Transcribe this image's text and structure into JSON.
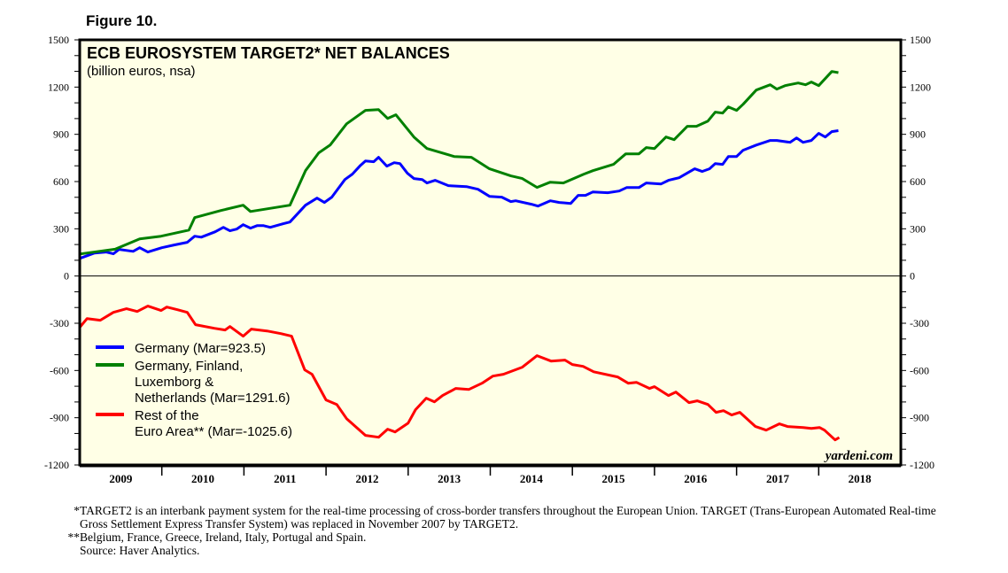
{
  "figure_label": "Figure 10.",
  "watermark": "yardeni.com",
  "footnotes": [
    {
      "mark": "*",
      "text": "TARGET2 is an interbank payment system for the real-time processing of cross-border transfers throughout the European Union. TARGET (Trans-European Automated Real-time Gross Settlement Express Transfer System) was replaced in November 2007 by TARGET2."
    },
    {
      "mark": "**",
      "text": "Belgium, France, Greece, Ireland, Italy, Portugal and Spain."
    },
    {
      "mark": "",
      "text": "Source: Haver Analytics."
    }
  ],
  "chart_data": {
    "type": "line",
    "title": "ECB EUROSYSTEM TARGET2* NET BALANCES",
    "subtitle": "(billion euros, nsa)",
    "xlabel": "",
    "ylabel": "",
    "xlim": [
      2009,
      2019
    ],
    "ylim": [
      -1200,
      1500
    ],
    "yticks": [
      1500,
      1200,
      900,
      600,
      300,
      0,
      -300,
      -600,
      -900,
      -1200
    ],
    "xtick_labels": [
      "2009",
      "2010",
      "2011",
      "2012",
      "2013",
      "2014",
      "2015",
      "2016",
      "2017",
      "2018"
    ],
    "legend_position": "left-middle",
    "series": [
      {
        "name": "Germany (Mar=923.5)",
        "color": "#0000ff",
        "points": [
          [
            2009.0,
            112
          ],
          [
            2009.18,
            146
          ],
          [
            2009.32,
            152
          ],
          [
            2009.41,
            141
          ],
          [
            2009.48,
            169
          ],
          [
            2009.65,
            157
          ],
          [
            2009.73,
            180
          ],
          [
            2009.83,
            152
          ],
          [
            2010.0,
            180
          ],
          [
            2010.15,
            197
          ],
          [
            2010.31,
            214
          ],
          [
            2010.4,
            253
          ],
          [
            2010.48,
            247
          ],
          [
            2010.65,
            281
          ],
          [
            2010.75,
            309
          ],
          [
            2010.83,
            287
          ],
          [
            2010.91,
            298
          ],
          [
            2010.99,
            326
          ],
          [
            2011.08,
            304
          ],
          [
            2011.16,
            320
          ],
          [
            2011.24,
            320
          ],
          [
            2011.32,
            309
          ],
          [
            2011.48,
            332
          ],
          [
            2011.56,
            343
          ],
          [
            2011.75,
            450
          ],
          [
            2011.89,
            495
          ],
          [
            2011.98,
            467
          ],
          [
            2012.07,
            501
          ],
          [
            2012.23,
            613
          ],
          [
            2012.32,
            647
          ],
          [
            2012.42,
            703
          ],
          [
            2012.48,
            731
          ],
          [
            2012.58,
            726
          ],
          [
            2012.64,
            754
          ],
          [
            2012.74,
            698
          ],
          [
            2012.83,
            720
          ],
          [
            2012.9,
            714
          ],
          [
            2012.99,
            653
          ],
          [
            2013.07,
            619
          ],
          [
            2013.17,
            613
          ],
          [
            2013.23,
            591
          ],
          [
            2013.33,
            608
          ],
          [
            2013.49,
            574
          ],
          [
            2013.71,
            568
          ],
          [
            2013.85,
            551
          ],
          [
            2013.99,
            506
          ],
          [
            2014.14,
            501
          ],
          [
            2014.25,
            473
          ],
          [
            2014.31,
            478
          ],
          [
            2014.5,
            456
          ],
          [
            2014.58,
            444
          ],
          [
            2014.73,
            478
          ],
          [
            2014.84,
            467
          ],
          [
            2014.98,
            461
          ],
          [
            2015.07,
            512
          ],
          [
            2015.16,
            512
          ],
          [
            2015.25,
            534
          ],
          [
            2015.43,
            529
          ],
          [
            2015.57,
            540
          ],
          [
            2015.66,
            562
          ],
          [
            2015.81,
            562
          ],
          [
            2015.9,
            591
          ],
          [
            2016.08,
            585
          ],
          [
            2016.17,
            608
          ],
          [
            2016.3,
            624
          ],
          [
            2016.49,
            681
          ],
          [
            2016.58,
            664
          ],
          [
            2016.67,
            681
          ],
          [
            2016.74,
            714
          ],
          [
            2016.83,
            709
          ],
          [
            2016.9,
            759
          ],
          [
            2017.0,
            759
          ],
          [
            2017.08,
            799
          ],
          [
            2017.24,
            832
          ],
          [
            2017.41,
            861
          ],
          [
            2017.49,
            861
          ],
          [
            2017.65,
            849
          ],
          [
            2017.73,
            877
          ],
          [
            2017.81,
            849
          ],
          [
            2017.91,
            861
          ],
          [
            2018.0,
            906
          ],
          [
            2018.08,
            883
          ],
          [
            2018.16,
            917
          ],
          [
            2018.24,
            923.5
          ]
        ]
      },
      {
        "name": "Germany, Finland, Luxemborg & Netherlands (Mar=1291.6)",
        "color": "#008000",
        "points": [
          [
            2009.0,
            140
          ],
          [
            2009.43,
            170
          ],
          [
            2009.73,
            236
          ],
          [
            2009.99,
            253
          ],
          [
            2010.33,
            292
          ],
          [
            2010.4,
            371
          ],
          [
            2010.72,
            416
          ],
          [
            2010.99,
            450
          ],
          [
            2011.08,
            410
          ],
          [
            2011.56,
            450
          ],
          [
            2011.75,
            669
          ],
          [
            2011.91,
            782
          ],
          [
            2012.05,
            832
          ],
          [
            2012.25,
            967
          ],
          [
            2012.48,
            1052
          ],
          [
            2012.64,
            1057
          ],
          [
            2012.75,
            1001
          ],
          [
            2012.85,
            1024
          ],
          [
            2013.07,
            883
          ],
          [
            2013.23,
            810
          ],
          [
            2013.56,
            759
          ],
          [
            2013.77,
            754
          ],
          [
            2013.99,
            681
          ],
          [
            2014.25,
            636
          ],
          [
            2014.39,
            619
          ],
          [
            2014.57,
            563
          ],
          [
            2014.73,
            596
          ],
          [
            2014.89,
            591
          ],
          [
            2015.14,
            647
          ],
          [
            2015.25,
            669
          ],
          [
            2015.5,
            709
          ],
          [
            2015.65,
            776
          ],
          [
            2015.81,
            776
          ],
          [
            2015.9,
            816
          ],
          [
            2016.0,
            810
          ],
          [
            2016.14,
            883
          ],
          [
            2016.24,
            866
          ],
          [
            2016.4,
            951
          ],
          [
            2016.51,
            951
          ],
          [
            2016.65,
            984
          ],
          [
            2016.74,
            1041
          ],
          [
            2016.83,
            1035
          ],
          [
            2016.9,
            1074
          ],
          [
            2017.0,
            1052
          ],
          [
            2017.08,
            1091
          ],
          [
            2017.24,
            1181
          ],
          [
            2017.41,
            1215
          ],
          [
            2017.49,
            1187
          ],
          [
            2017.59,
            1209
          ],
          [
            2017.75,
            1226
          ],
          [
            2017.84,
            1215
          ],
          [
            2017.91,
            1232
          ],
          [
            2018.0,
            1209
          ],
          [
            2018.16,
            1299
          ],
          [
            2018.24,
            1291.6
          ]
        ]
      },
      {
        "name": "Rest of the Euro Area** (Mar=-1025.6)",
        "color": "#ff0000",
        "points": [
          [
            2009.0,
            -326
          ],
          [
            2009.09,
            -270
          ],
          [
            2009.25,
            -281
          ],
          [
            2009.41,
            -231
          ],
          [
            2009.57,
            -208
          ],
          [
            2009.7,
            -225
          ],
          [
            2009.83,
            -191
          ],
          [
            2009.99,
            -219
          ],
          [
            2010.06,
            -197
          ],
          [
            2010.19,
            -214
          ],
          [
            2010.31,
            -231
          ],
          [
            2010.41,
            -309
          ],
          [
            2010.64,
            -332
          ],
          [
            2010.77,
            -343
          ],
          [
            2010.83,
            -321
          ],
          [
            2010.99,
            -382
          ],
          [
            2011.09,
            -337
          ],
          [
            2011.28,
            -349
          ],
          [
            2011.45,
            -366
          ],
          [
            2011.58,
            -382
          ],
          [
            2011.74,
            -596
          ],
          [
            2011.83,
            -624
          ],
          [
            2012.0,
            -787
          ],
          [
            2012.13,
            -816
          ],
          [
            2012.25,
            -906
          ],
          [
            2012.48,
            -1012
          ],
          [
            2012.64,
            -1024
          ],
          [
            2012.75,
            -973
          ],
          [
            2012.84,
            -990
          ],
          [
            2013.0,
            -934
          ],
          [
            2013.09,
            -849
          ],
          [
            2013.22,
            -776
          ],
          [
            2013.32,
            -799
          ],
          [
            2013.42,
            -759
          ],
          [
            2013.58,
            -714
          ],
          [
            2013.74,
            -720
          ],
          [
            2013.9,
            -681
          ],
          [
            2014.03,
            -636
          ],
          [
            2014.16,
            -624
          ],
          [
            2014.39,
            -579
          ],
          [
            2014.57,
            -506
          ],
          [
            2014.74,
            -540
          ],
          [
            2014.91,
            -534
          ],
          [
            2015.0,
            -562
          ],
          [
            2015.13,
            -574
          ],
          [
            2015.26,
            -608
          ],
          [
            2015.55,
            -641
          ],
          [
            2015.68,
            -681
          ],
          [
            2015.78,
            -675
          ],
          [
            2015.94,
            -714
          ],
          [
            2016.0,
            -703
          ],
          [
            2016.17,
            -759
          ],
          [
            2016.26,
            -737
          ],
          [
            2016.42,
            -804
          ],
          [
            2016.52,
            -793
          ],
          [
            2016.65,
            -816
          ],
          [
            2016.75,
            -866
          ],
          [
            2016.84,
            -855
          ],
          [
            2016.94,
            -883
          ],
          [
            2017.04,
            -866
          ],
          [
            2017.23,
            -956
          ],
          [
            2017.36,
            -979
          ],
          [
            2017.52,
            -939
          ],
          [
            2017.62,
            -956
          ],
          [
            2017.81,
            -962
          ],
          [
            2017.91,
            -968
          ],
          [
            2018.01,
            -962
          ],
          [
            2018.07,
            -979
          ],
          [
            2018.2,
            -1041
          ],
          [
            2018.25,
            -1025.6
          ]
        ]
      }
    ],
    "legend_lines": [
      {
        "series": 0,
        "lines": [
          "Germany (Mar=923.5)"
        ]
      },
      {
        "series": 1,
        "lines": [
          "Germany, Finland,",
          "Luxemborg &",
          "Netherlands (Mar=1291.6)"
        ]
      },
      {
        "series": 2,
        "lines": [
          "Rest of the",
          "Euro Area** (Mar=-1025.6)"
        ]
      }
    ]
  }
}
